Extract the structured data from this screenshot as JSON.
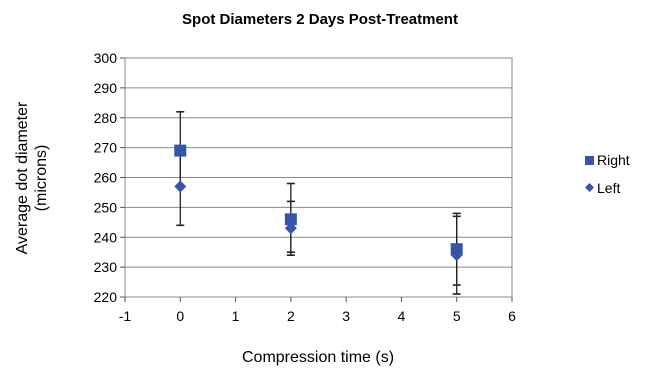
{
  "chart_data": {
    "type": "scatter",
    "title": "Spot Diameters 2 Days Post-Treatment",
    "xlabel": "Compression time (s)",
    "ylabel_line1": "Average dot diameter",
    "ylabel_line2": "(microns)",
    "xlim": [
      -1,
      6
    ],
    "ylim": [
      220,
      300
    ],
    "xticks": [
      "-1",
      "0",
      "1",
      "2",
      "3",
      "4",
      "5",
      "6"
    ],
    "yticks": [
      "220",
      "230",
      "240",
      "250",
      "260",
      "270",
      "280",
      "290",
      "300"
    ],
    "grid": "horizontal",
    "legend_position": "right",
    "series": [
      {
        "name": "Right",
        "marker": "square",
        "color": "#3355aa",
        "points": [
          {
            "x": 0,
            "y": 269,
            "err_low": 257,
            "err_high": 282
          },
          {
            "x": 2,
            "y": 246,
            "err_low": 234,
            "err_high": 258
          },
          {
            "x": 5,
            "y": 236,
            "err_low": 224,
            "err_high": 248
          }
        ]
      },
      {
        "name": "Left",
        "marker": "diamond",
        "color": "#3355aa",
        "points": [
          {
            "x": 0,
            "y": 257,
            "err_low": 244,
            "err_high": 270
          },
          {
            "x": 2,
            "y": 243,
            "err_low": 235,
            "err_high": 252
          },
          {
            "x": 5,
            "y": 234,
            "err_low": 221,
            "err_high": 247
          }
        ]
      }
    ]
  }
}
